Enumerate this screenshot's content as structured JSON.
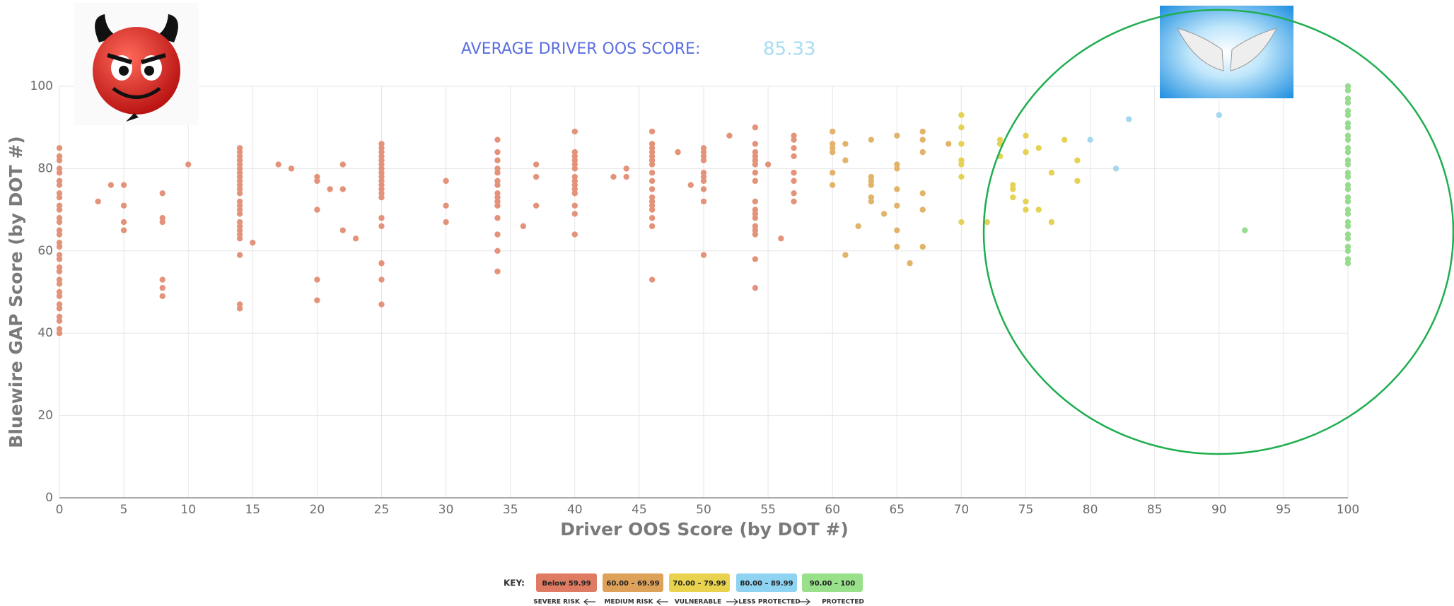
{
  "chart_data": {
    "type": "scatter",
    "title": "AVERAGE DRIVER OOS  SCORE:",
    "average_score": 85.33,
    "x_label": "Driver OOS Score (by DOT #)",
    "y_label": "Bluewire GAP Score (by DOT #)",
    "xlim": [
      0,
      100
    ],
    "ylim": [
      0,
      100
    ],
    "xticks": [
      0,
      5,
      10,
      15,
      20,
      25,
      30,
      35,
      40,
      45,
      50,
      55,
      60,
      65,
      70,
      75,
      80,
      85,
      90,
      95,
      100
    ],
    "yticks": [
      0,
      20,
      40,
      60,
      80,
      100
    ],
    "grid": true,
    "key_title": "KEY:",
    "key_labels": [
      "SEVERE RISK",
      "MEDIUM RISK",
      "VULNERABLE",
      "LESS PROTECTED",
      "PROTECTED"
    ],
    "series": [
      {
        "name": "Below 59.99",
        "color": "#e4937b",
        "key_color": "#de7b62",
        "x": [
          0,
          0,
          0,
          0,
          0,
          0,
          0,
          0,
          0,
          0,
          0,
          0,
          0,
          0,
          0,
          0,
          0,
          0,
          0,
          0,
          0,
          0,
          0,
          0,
          0,
          0,
          0,
          0,
          0,
          0,
          0,
          3,
          4,
          5,
          5,
          5,
          5,
          8,
          8,
          8,
          8,
          8,
          8,
          10,
          14,
          14,
          14,
          14,
          14,
          14,
          14,
          14,
          14,
          14,
          14,
          14,
          14,
          14,
          14,
          14,
          14,
          14,
          14,
          14,
          14,
          14,
          14,
          14,
          15,
          17,
          18,
          20,
          20,
          20,
          20,
          20,
          21,
          22,
          22,
          22,
          23,
          25,
          25,
          25,
          25,
          25,
          25,
          25,
          25,
          25,
          25,
          25,
          25,
          25,
          25,
          25,
          25,
          25,
          25,
          25,
          30,
          30,
          30,
          34,
          34,
          34,
          34,
          34,
          34,
          34,
          34,
          34,
          34,
          34,
          34,
          34,
          34,
          34,
          36,
          37,
          37,
          37,
          40,
          40,
          40,
          40,
          40,
          40,
          40,
          40,
          40,
          40,
          40,
          40,
          40,
          40,
          43,
          44,
          44,
          46,
          46,
          46,
          46,
          46,
          46,
          46,
          46,
          46,
          46,
          46,
          46,
          46,
          46,
          46,
          46,
          46,
          48,
          49,
          50,
          50,
          50,
          50,
          50,
          50,
          50,
          50,
          50,
          50,
          52,
          54,
          54,
          54,
          54,
          54,
          54,
          54,
          54,
          54,
          54,
          54,
          54,
          54,
          54,
          54,
          54,
          54,
          55,
          56,
          57,
          57,
          57,
          57,
          57,
          57,
          57,
          57
        ],
        "values": [
          40,
          41,
          43,
          44,
          46,
          47,
          49,
          50,
          52,
          53,
          55,
          56,
          58,
          59,
          61,
          62,
          64,
          65,
          67,
          68,
          70,
          71,
          73,
          74,
          76,
          77,
          79,
          80,
          82,
          83,
          85,
          72,
          76,
          76,
          71,
          67,
          65,
          74,
          68,
          67,
          53,
          51,
          49,
          81,
          85,
          84,
          83,
          82,
          81,
          80,
          79,
          78,
          77,
          76,
          75,
          74,
          72,
          71,
          70,
          69,
          67,
          66,
          65,
          64,
          63,
          59,
          47,
          46,
          62,
          81,
          80,
          78,
          77,
          70,
          53,
          48,
          75,
          81,
          75,
          65,
          63,
          86,
          85,
          84,
          83,
          82,
          81,
          80,
          79,
          78,
          77,
          76,
          75,
          74,
          73,
          68,
          66,
          57,
          53,
          47,
          77,
          71,
          67,
          87,
          84,
          82,
          80,
          79,
          77,
          76,
          74,
          73,
          72,
          71,
          68,
          64,
          60,
          55,
          66,
          81,
          78,
          71,
          89,
          84,
          83,
          82,
          81,
          80,
          78,
          77,
          76,
          75,
          74,
          71,
          69,
          64,
          78,
          80,
          78,
          89,
          86,
          85,
          84,
          83,
          82,
          81,
          79,
          77,
          75,
          73,
          72,
          71,
          70,
          68,
          66,
          53,
          84,
          76,
          85,
          84,
          83,
          82,
          79,
          78,
          77,
          75,
          72,
          59,
          88,
          90,
          86,
          84,
          83,
          82,
          81,
          79,
          77,
          72,
          70,
          69,
          68,
          66,
          65,
          64,
          58,
          51,
          81,
          63,
          88,
          87,
          85,
          83,
          79,
          77,
          74,
          72
        ]
      },
      {
        "name": "60.00 – 69.99",
        "color": "#e2b46a",
        "key_color": "#dea15a",
        "x": [
          60,
          60,
          60,
          60,
          60,
          60,
          61,
          61,
          61,
          62,
          63,
          63,
          63,
          63,
          63,
          63,
          64,
          65,
          65,
          65,
          65,
          65,
          65,
          65,
          66,
          67,
          67,
          67,
          67,
          67,
          67,
          69
        ],
        "values": [
          89,
          86,
          85,
          84,
          79,
          76,
          86,
          82,
          59,
          66,
          87,
          78,
          77,
          76,
          73,
          72,
          69,
          88,
          81,
          80,
          75,
          71,
          65,
          61,
          57,
          89,
          87,
          84,
          74,
          70,
          61,
          86
        ]
      },
      {
        "name": "70.00 – 79.99",
        "color": "#e5d255",
        "key_color": "#e9d24d",
        "x": [
          70,
          70,
          70,
          70,
          70,
          70,
          70,
          72,
          73,
          73,
          73,
          74,
          74,
          74,
          75,
          75,
          75,
          75,
          76,
          76,
          77,
          77,
          78,
          79,
          79
        ],
        "values": [
          93,
          90,
          86,
          82,
          81,
          78,
          67,
          67,
          87,
          86,
          83,
          76,
          75,
          73,
          88,
          84,
          72,
          70,
          85,
          70,
          79,
          67,
          87,
          82,
          77
        ]
      },
      {
        "name": "80.00 – 89.99",
        "color": "#a3d8f0",
        "key_color": "#8fd3f2",
        "x": [
          80,
          82,
          83,
          90
        ],
        "values": [
          87,
          80,
          92,
          93
        ]
      },
      {
        "name": "90.00 – 100",
        "color": "#97dc8e",
        "key_color": "#98e08a",
        "x": [
          92,
          100,
          100,
          100,
          100,
          100,
          100,
          100,
          100,
          100,
          100,
          100,
          100,
          100,
          100,
          100,
          100,
          100,
          100,
          100,
          100,
          100,
          100,
          100,
          100,
          100,
          100,
          100,
          100,
          100,
          100
        ],
        "values": [
          65,
          57,
          58,
          60,
          61,
          63,
          64,
          66,
          67,
          69,
          70,
          72,
          73,
          75,
          76,
          78,
          79,
          81,
          82,
          84,
          85,
          87,
          88,
          90,
          91,
          93,
          94,
          96,
          97,
          99,
          100
        ]
      }
    ]
  }
}
